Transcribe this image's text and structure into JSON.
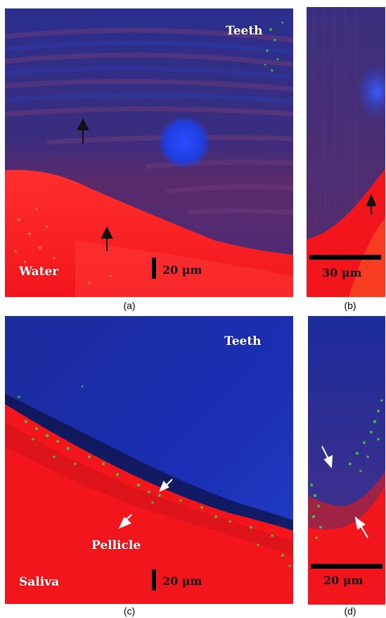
{
  "panels": {
    "a": {
      "caption": "(a)",
      "label_teeth": "Teeth",
      "label_medium": "Water",
      "scale_label": "20 μm"
    },
    "b": {
      "caption": "(b)",
      "scale_label": "30 μm"
    },
    "c": {
      "caption": "(c)",
      "label_teeth": "Teeth",
      "label_pellicle": "Pellicle",
      "label_medium": "Saliva",
      "scale_label": "20 μm"
    },
    "d": {
      "caption": "(d)",
      "scale_label": "20 μm"
    }
  },
  "colors": {
    "tooth_blue": "#2a2f9a",
    "deep_blue": "#1b2fb6",
    "medium_red": "#f2161c",
    "fluor_green": "#3ad33a",
    "arrow_black": "#111111",
    "arrow_white": "#ffffff"
  }
}
